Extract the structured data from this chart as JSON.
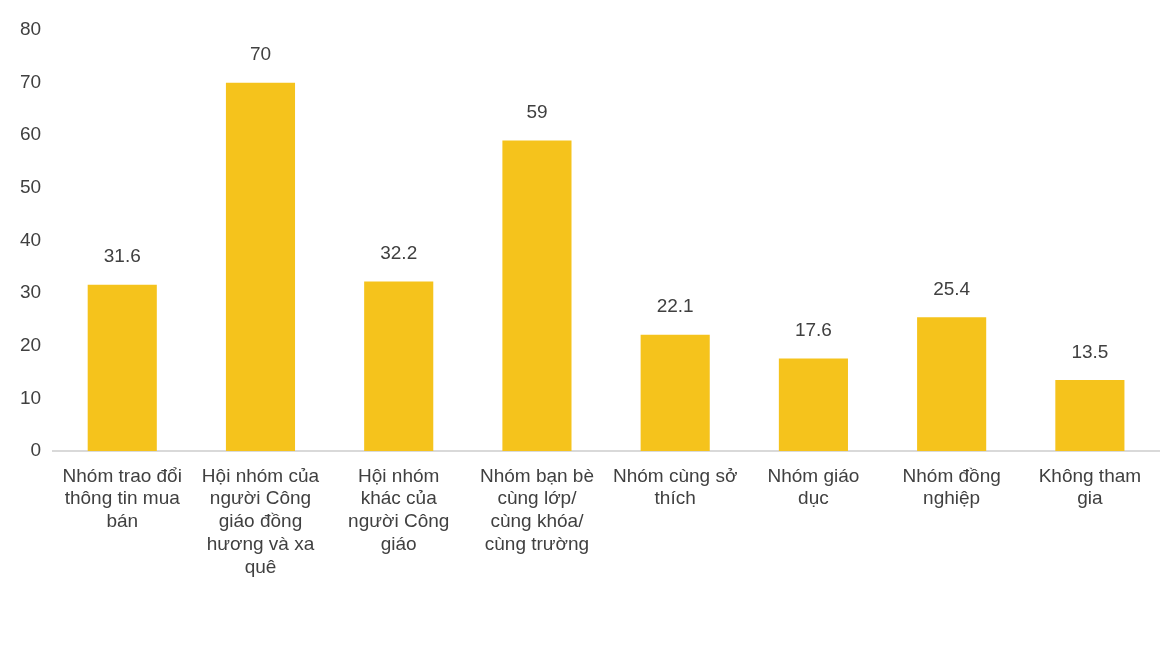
{
  "chart_data": {
    "type": "bar",
    "categories": [
      "Nhóm trao đổi thông tin mua bán",
      "Hội nhóm của người Công giáo đồng hương và xa quê",
      "Hội nhóm khác của người Công giáo",
      "Nhóm bạn bè cùng lớp/ cùng khóa/ cùng trường",
      "Nhóm cùng sở thích",
      "Nhóm giáo dục",
      "Nhóm đồng nghiệp",
      "Không tham gia"
    ],
    "values": [
      31.6,
      70,
      32.2,
      59,
      22.1,
      17.6,
      25.4,
      13.5
    ],
    "color": "#f5c31c",
    "ylim": [
      0,
      80
    ],
    "yticks": [
      0,
      10,
      20,
      30,
      40,
      50,
      60,
      70,
      80
    ],
    "grid": false,
    "legend": false,
    "data_labels": true
  }
}
